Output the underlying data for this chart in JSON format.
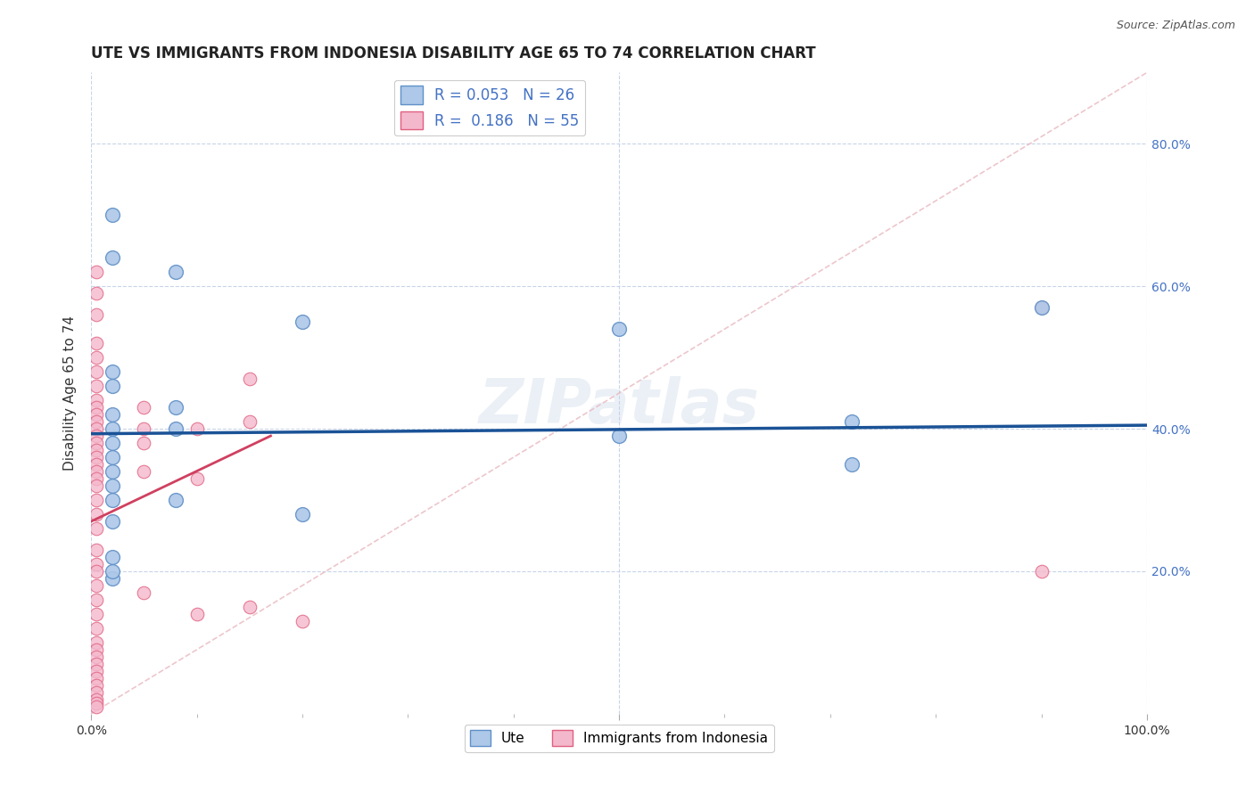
{
  "title": "UTE VS IMMIGRANTS FROM INDONESIA DISABILITY AGE 65 TO 74 CORRELATION CHART",
  "source": "Source: ZipAtlas.com",
  "ylabel": "Disability Age 65 to 74",
  "xlim": [
    0,
    1.0
  ],
  "ylim": [
    0,
    0.9
  ],
  "ytick_positions": [
    0.2,
    0.4,
    0.6,
    0.8
  ],
  "ytick_labels": [
    "20.0%",
    "40.0%",
    "60.0%",
    "80.0%"
  ],
  "legend_r1": "R = 0.053",
  "legend_n1": "N = 26",
  "legend_r2": "R = 0.186",
  "legend_n2": "N = 55",
  "color_ute_fill": "#adc8e8",
  "color_ute_edge": "#6090c8",
  "color_indo_fill": "#f4b8cc",
  "color_indo_edge": "#e06080",
  "color_ute_line": "#1a5296",
  "color_indo_line": "#d04060",
  "color_diag_line": "#e8b8c0",
  "watermark": "ZIPatlas",
  "background_color": "#ffffff",
  "grid_color": "#c8d4e8",
  "title_fontsize": 12,
  "axis_label_fontsize": 11,
  "tick_fontsize": 10,
  "legend_fontsize": 12,
  "ute_x": [
    0.02,
    0.02,
    0.02,
    0.02,
    0.02,
    0.02,
    0.02,
    0.02,
    0.02,
    0.02,
    0.02,
    0.08,
    0.08,
    0.08,
    0.08,
    0.2,
    0.2,
    0.5,
    0.5,
    0.72,
    0.72,
    0.9,
    0.02,
    0.02,
    0.02,
    0.02
  ],
  "ute_y": [
    0.7,
    0.64,
    0.48,
    0.46,
    0.42,
    0.4,
    0.38,
    0.36,
    0.34,
    0.27,
    0.19,
    0.62,
    0.43,
    0.4,
    0.3,
    0.55,
    0.28,
    0.54,
    0.39,
    0.41,
    0.35,
    0.57,
    0.32,
    0.3,
    0.22,
    0.2
  ],
  "indo_x": [
    0.005,
    0.005,
    0.005,
    0.005,
    0.005,
    0.005,
    0.005,
    0.005,
    0.005,
    0.005,
    0.005,
    0.005,
    0.005,
    0.005,
    0.005,
    0.005,
    0.005,
    0.005,
    0.005,
    0.005,
    0.005,
    0.005,
    0.005,
    0.005,
    0.005,
    0.005,
    0.005,
    0.005,
    0.005,
    0.005,
    0.005,
    0.005,
    0.005,
    0.005,
    0.005,
    0.005,
    0.005,
    0.005,
    0.005,
    0.005,
    0.005,
    0.05,
    0.05,
    0.05,
    0.05,
    0.05,
    0.1,
    0.1,
    0.1,
    0.15,
    0.15,
    0.15,
    0.2,
    0.9,
    0.9
  ],
  "indo_y": [
    0.62,
    0.59,
    0.56,
    0.52,
    0.5,
    0.48,
    0.46,
    0.44,
    0.43,
    0.42,
    0.41,
    0.4,
    0.39,
    0.38,
    0.37,
    0.36,
    0.35,
    0.34,
    0.33,
    0.32,
    0.3,
    0.28,
    0.26,
    0.23,
    0.21,
    0.2,
    0.18,
    0.16,
    0.14,
    0.12,
    0.1,
    0.09,
    0.08,
    0.07,
    0.06,
    0.05,
    0.04,
    0.03,
    0.02,
    0.015,
    0.01,
    0.43,
    0.4,
    0.38,
    0.34,
    0.17,
    0.4,
    0.33,
    0.14,
    0.47,
    0.41,
    0.15,
    0.13,
    0.57,
    0.2
  ],
  "ute_line_x": [
    0.0,
    1.0
  ],
  "ute_line_y": [
    0.393,
    0.405
  ],
  "indo_line_x": [
    0.0,
    0.17
  ],
  "indo_line_y": [
    0.27,
    0.39
  ]
}
